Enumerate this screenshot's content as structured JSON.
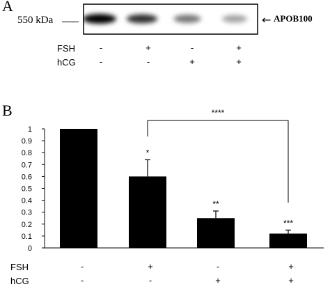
{
  "panel_a": {
    "letter": "A",
    "mw_label": "550 kDa",
    "band_label": "APOB100",
    "band_intensities": [
      1.0,
      0.78,
      0.45,
      0.25
    ],
    "rows": [
      {
        "label": "FSH",
        "marks": [
          "-",
          "+",
          "-",
          "+"
        ]
      },
      {
        "label": "hCG",
        "marks": [
          "-",
          "-",
          "+",
          "+"
        ]
      }
    ]
  },
  "panel_b": {
    "letter": "B",
    "rows": [
      {
        "label": "FSH",
        "marks": [
          "-",
          "+",
          "-",
          "+"
        ]
      },
      {
        "label": "hCG",
        "marks": [
          "-",
          "-",
          "+",
          "+"
        ]
      }
    ]
  },
  "chart_data": {
    "type": "bar",
    "categories": [
      "FSH- hCG-",
      "FSH+ hCG-",
      "FSH- hCG+",
      "FSH+ hCG+"
    ],
    "values": [
      1.0,
      0.6,
      0.25,
      0.12
    ],
    "errors": [
      0,
      0.14,
      0.06,
      0.03
    ],
    "significance": [
      "",
      "*",
      "**",
      "***"
    ],
    "comparison": {
      "from": 1,
      "to": 3,
      "label": "****"
    },
    "ylim": [
      0,
      1
    ],
    "yticks": [
      "0",
      "0.1",
      "0.2",
      "0.3",
      "0.4",
      "0.5",
      "0.6",
      "0.7",
      "0.8",
      "0.9",
      "1"
    ],
    "xlabel": "",
    "ylabel": "",
    "grid": false,
    "bar_color": "#000000"
  }
}
